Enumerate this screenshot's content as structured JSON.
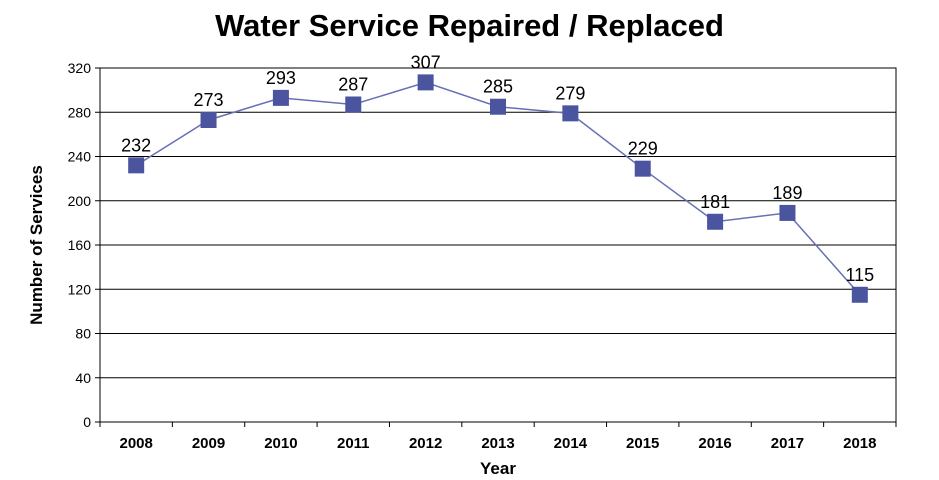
{
  "chart_data": {
    "type": "line",
    "title": "Water Service Repaired / Replaced",
    "xlabel": "Year",
    "ylabel": "Number of Services",
    "categories": [
      "2008",
      "2009",
      "2010",
      "2011",
      "2012",
      "2013",
      "2014",
      "2015",
      "2016",
      "2017",
      "2018"
    ],
    "series": [
      {
        "values": [
          232,
          273,
          293,
          287,
          307,
          285,
          279,
          229,
          181,
          189,
          115
        ]
      }
    ],
    "ylim": [
      0,
      320
    ],
    "yticks": [
      0,
      40,
      80,
      120,
      160,
      200,
      240,
      280,
      320
    ],
    "grid": true,
    "legend": "none",
    "line_color": "#6670b4",
    "marker_color": "#4b549e"
  }
}
